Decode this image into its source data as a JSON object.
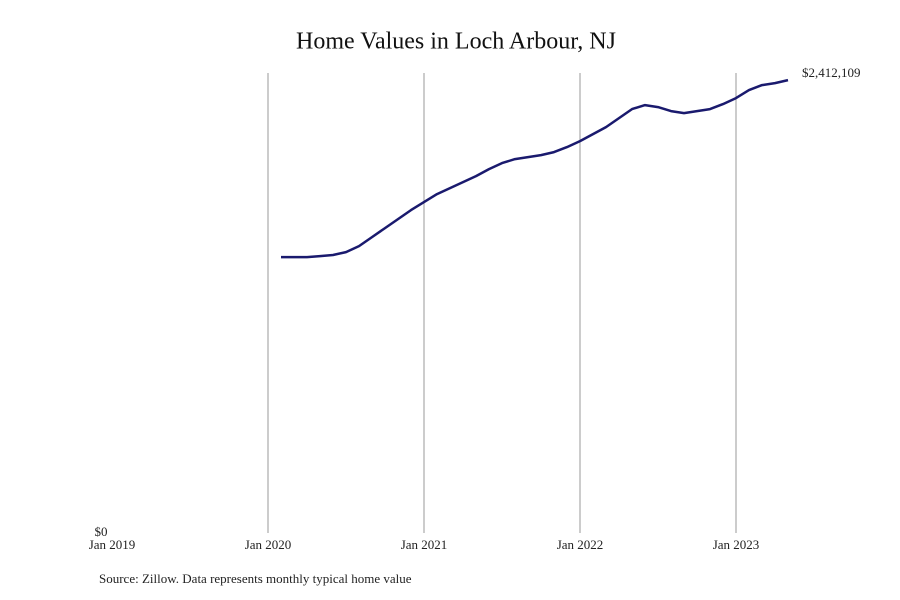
{
  "chart_data": {
    "type": "line",
    "title": "Home Values in Loch Arbour, NJ",
    "source": "Source: Zillow. Data represents monthly typical home value",
    "x": [
      "2020-02",
      "2020-03",
      "2020-04",
      "2020-05",
      "2020-06",
      "2020-07",
      "2020-08",
      "2020-09",
      "2020-10",
      "2020-11",
      "2020-12",
      "2021-01",
      "2021-02",
      "2021-03",
      "2021-04",
      "2021-05",
      "2021-06",
      "2021-07",
      "2021-08",
      "2021-09",
      "2021-10",
      "2021-11",
      "2021-12",
      "2022-01",
      "2022-02",
      "2022-03",
      "2022-04",
      "2022-05",
      "2022-06",
      "2022-07",
      "2022-08",
      "2022-09",
      "2022-10",
      "2022-11",
      "2022-12",
      "2023-01",
      "2023-02",
      "2023-03",
      "2023-04",
      "2023-05"
    ],
    "series": [
      {
        "name": "Typical home value",
        "color": "#1a1a6e",
        "values": [
          1469700,
          1469700,
          1469700,
          1475000,
          1480400,
          1496300,
          1528300,
          1576200,
          1624100,
          1672100,
          1720000,
          1762600,
          1805200,
          1837100,
          1869100,
          1901000,
          1938300,
          1970300,
          1991600,
          2002200,
          2012900,
          2028800,
          2055500,
          2087400,
          2124700,
          2162000,
          2209900,
          2257800,
          2279100,
          2268500,
          2247200,
          2236500,
          2247200,
          2257800,
          2284400,
          2316400,
          2359000,
          2385600,
          2396300,
          2412109
        ],
        "value_labels": [
          null,
          null,
          null,
          null,
          null,
          null,
          null,
          null,
          null,
          null,
          null,
          null,
          null,
          null,
          null,
          null,
          null,
          null,
          null,
          null,
          null,
          null,
          null,
          null,
          null,
          null,
          null,
          null,
          null,
          null,
          null,
          null,
          null,
          null,
          null,
          null,
          null,
          null,
          null,
          "$2,412,109"
        ]
      }
    ],
    "xlim": [
      "2019-01",
      "2023-06"
    ],
    "xticks": [
      {
        "value": "2019-01",
        "label": "Jan 2019"
      },
      {
        "value": "2020-01",
        "label": "Jan 2020"
      },
      {
        "value": "2021-01",
        "label": "Jan 2021"
      },
      {
        "value": "2022-01",
        "label": "Jan 2022"
      },
      {
        "value": "2023-01",
        "label": "Jan 2023"
      }
    ],
    "ylim": [
      0,
      2450000
    ],
    "yticks": [
      {
        "value": 0,
        "label": "$0"
      }
    ],
    "grid": true
  }
}
